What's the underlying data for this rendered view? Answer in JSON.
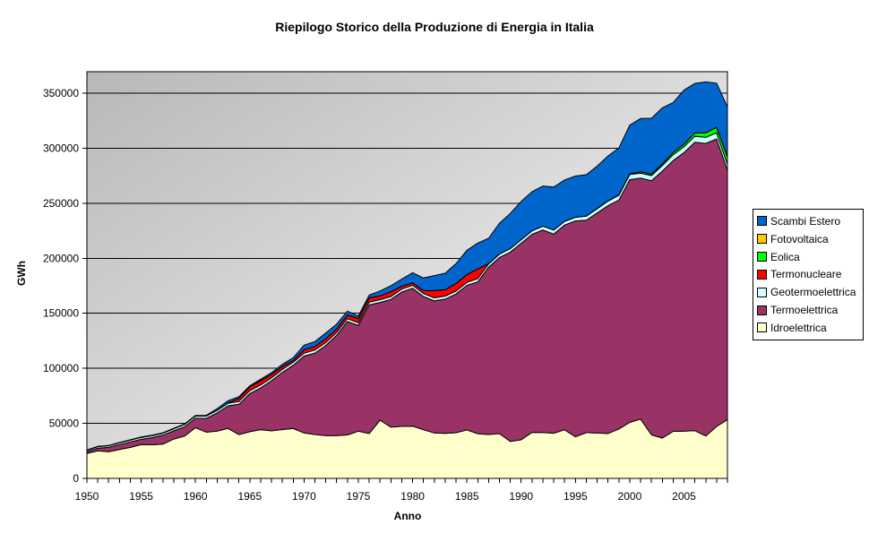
{
  "title": "Riepilogo Storico della Produzione di Energia in Italia",
  "axes": {
    "x_title": "Anno",
    "y_title": "GWh"
  },
  "chart_data": {
    "type": "area",
    "stacked": true,
    "title": "Riepilogo Storico della Produzione di Energia in Italia",
    "xlabel": "Anno",
    "ylabel": "GWh",
    "unit": "GWh",
    "grid": "horizontal",
    "legend_position": "right",
    "plot_bg_gradient": [
      "#b8b8b8",
      "#ffffff"
    ],
    "ylim": [
      0,
      370000
    ],
    "y_ticks": [
      0,
      50000,
      100000,
      150000,
      200000,
      250000,
      300000,
      350000
    ],
    "x_tick_labels": [
      1950,
      1955,
      1960,
      1965,
      1970,
      1975,
      1980,
      1985,
      1990,
      1995,
      2000,
      2005
    ],
    "x": [
      1950,
      1951,
      1952,
      1953,
      1954,
      1955,
      1956,
      1957,
      1958,
      1959,
      1960,
      1961,
      1962,
      1963,
      1964,
      1965,
      1966,
      1967,
      1968,
      1969,
      1970,
      1971,
      1972,
      1973,
      1974,
      1975,
      1976,
      1977,
      1978,
      1979,
      1980,
      1981,
      1982,
      1983,
      1984,
      1985,
      1986,
      1987,
      1988,
      1989,
      1990,
      1991,
      1992,
      1993,
      1994,
      1995,
      1996,
      1997,
      1998,
      1999,
      2000,
      2001,
      2002,
      2003,
      2004,
      2005,
      2006,
      2007,
      2008,
      2009
    ],
    "series": [
      {
        "name": "Idroelettrica",
        "color": "#FFFFCC",
        "values": [
          22700,
          25000,
          24200,
          26300,
          28200,
          30700,
          30500,
          31200,
          35700,
          38500,
          46100,
          42000,
          43000,
          45400,
          39800,
          42400,
          44300,
          43200,
          44400,
          45300,
          41300,
          39900,
          38800,
          38900,
          39500,
          42900,
          40700,
          52900,
          46600,
          47300,
          47500,
          44200,
          41300,
          40900,
          41500,
          44000,
          40600,
          39900,
          40700,
          33600,
          35100,
          41800,
          41700,
          41000,
          44200,
          37800,
          41600,
          41200,
          40800,
          44900,
          50900,
          53900,
          39500,
          36700,
          42700,
          42900,
          43400,
          38500,
          47200,
          53400
        ]
      },
      {
        "name": "Termoelettrica",
        "color": "#993366",
        "values": [
          1700,
          2500,
          4000,
          4500,
          5000,
          4800,
          6500,
          8000,
          7500,
          8500,
          8500,
          12500,
          16500,
          20500,
          27500,
          34600,
          38000,
          45500,
          52000,
          57500,
          69800,
          74000,
          82000,
          91000,
          103000,
          96100,
          117000,
          107000,
          116000,
          122000,
          125300,
          121000,
          120000,
          122000,
          126000,
          131500,
          138000,
          152000,
          160000,
          172000,
          178600,
          180000,
          184000,
          181000,
          186000,
          196100,
          193000,
          200000,
          207000,
          208000,
          220500,
          219000,
          231000,
          242500,
          246000,
          253100,
          262000,
          265800,
          261300,
          226600
        ]
      },
      {
        "name": "Geotermoelettrica",
        "color": "#CCFFFF",
        "values": [
          1300,
          1400,
          1500,
          1600,
          1700,
          1800,
          1850,
          1900,
          2000,
          2050,
          2100,
          2200,
          2300,
          2400,
          2500,
          2600,
          2600,
          2650,
          2650,
          2700,
          2700,
          2700,
          2600,
          2600,
          2600,
          2500,
          2500,
          2500,
          2600,
          2700,
          2700,
          2700,
          2700,
          2700,
          2700,
          2700,
          2900,
          3000,
          3100,
          3200,
          3200,
          3200,
          3500,
          3700,
          3400,
          3400,
          3800,
          3900,
          4200,
          4400,
          4700,
          4500,
          4700,
          5000,
          5400,
          5300,
          5500,
          5600,
          5500,
          5300
        ]
      },
      {
        "name": "Termonucleare",
        "color": "#FF0000",
        "values": [
          0,
          0,
          0,
          0,
          0,
          0,
          0,
          0,
          0,
          0,
          0,
          0,
          0,
          300,
          2900,
          3500,
          3900,
          3200,
          2600,
          1600,
          3200,
          3200,
          3600,
          3100,
          3400,
          3800,
          3800,
          3400,
          4400,
          2600,
          2200,
          2700,
          6800,
          5800,
          6900,
          7000,
          8800,
          200,
          0,
          0,
          0,
          0,
          0,
          0,
          0,
          0,
          0,
          0,
          0,
          0,
          0,
          0,
          0,
          0,
          0,
          0,
          0,
          0,
          0,
          0
        ]
      },
      {
        "name": "Eolica",
        "color": "#00FF00",
        "values": [
          0,
          0,
          0,
          0,
          0,
          0,
          0,
          0,
          0,
          0,
          0,
          0,
          0,
          0,
          0,
          0,
          0,
          0,
          0,
          0,
          0,
          0,
          0,
          0,
          0,
          0,
          0,
          0,
          0,
          0,
          0,
          0,
          0,
          0,
          0,
          0,
          0,
          0,
          0,
          0,
          0,
          0,
          0,
          0,
          0,
          9,
          33,
          118,
          232,
          403,
          563,
          1179,
          1404,
          1458,
          1847,
          2344,
          2971,
          4034,
          4861,
          6543
        ]
      },
      {
        "name": "Fotovoltaica",
        "color": "#FFCC00",
        "values": [
          0,
          0,
          0,
          0,
          0,
          0,
          0,
          0,
          0,
          0,
          0,
          0,
          0,
          0,
          0,
          0,
          0,
          0,
          0,
          0,
          0,
          0,
          0,
          0,
          0,
          0,
          0,
          0,
          0,
          0,
          0,
          0,
          0,
          0,
          0,
          0,
          0,
          0,
          0,
          0,
          0,
          0,
          0,
          0,
          0,
          0,
          0,
          0,
          0,
          0,
          0,
          0,
          4,
          5,
          6,
          31,
          35,
          39,
          193,
          676
        ]
      },
      {
        "name": "Scambi Estero",
        "color": "#0066CC",
        "values": [
          100,
          150,
          200,
          200,
          300,
          400,
          400,
          300,
          300,
          400,
          500,
          600,
          1500,
          2000,
          1500,
          1100,
          1300,
          1500,
          2000,
          2500,
          4000,
          4500,
          5000,
          4500,
          3500,
          2300,
          2500,
          4500,
          5500,
          6500,
          9200,
          11500,
          13500,
          15000,
          18000,
          22000,
          23500,
          23000,
          28000,
          32000,
          34700,
          35500,
          36500,
          39000,
          37500,
          37400,
          37500,
          38500,
          40700,
          42500,
          44300,
          48400,
          50600,
          51000,
          45600,
          49200,
          45000,
          46300,
          40000,
          45000
        ]
      }
    ],
    "legend_order_top_to_bottom": [
      "Scambi Estero",
      "Fotovoltaica",
      "Eolica",
      "Termonucleare",
      "Geotermoelettrica",
      "Termoelettrica",
      "Idroelettrica"
    ]
  }
}
